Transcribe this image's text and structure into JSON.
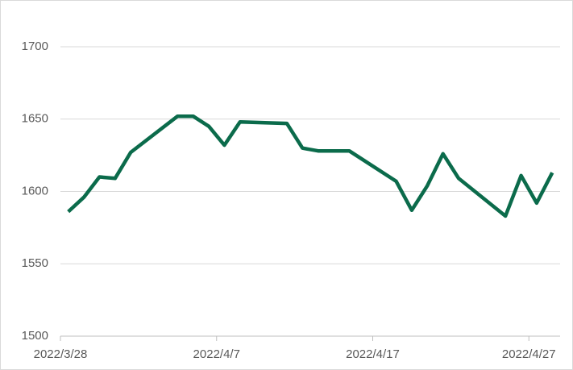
{
  "chart_data": {
    "type": "line",
    "x": [
      "2022/3/28",
      "2022/3/29",
      "2022/3/30",
      "2022/3/31",
      "2022/4/1",
      "2022/4/4",
      "2022/4/5",
      "2022/4/6",
      "2022/4/7",
      "2022/4/8",
      "2022/4/11",
      "2022/4/12",
      "2022/4/13",
      "2022/4/15",
      "2022/4/18",
      "2022/4/19",
      "2022/4/20",
      "2022/4/21",
      "2022/4/22",
      "2022/4/25",
      "2022/4/26",
      "2022/4/27",
      "2022/4/28"
    ],
    "series": [
      {
        "color": "#0b6b4b",
        "values": [
          1586,
          1596,
          1610,
          1609,
          1627,
          1652,
          1652,
          1645,
          1632,
          1648,
          1647,
          1630,
          1628,
          1628,
          1607,
          1587,
          1604,
          1626,
          1609,
          1583,
          1611,
          1592,
          1613
        ]
      }
    ],
    "xlim": [
      "2022/3/28",
      "2022/4/28"
    ],
    "xticks": [
      "2022/3/28",
      "2022/4/7",
      "2022/4/17",
      "2022/4/27"
    ],
    "ylim": [
      1500,
      1700
    ],
    "yticks": [
      1500,
      1550,
      1600,
      1650,
      1700
    ],
    "grid": true
  }
}
